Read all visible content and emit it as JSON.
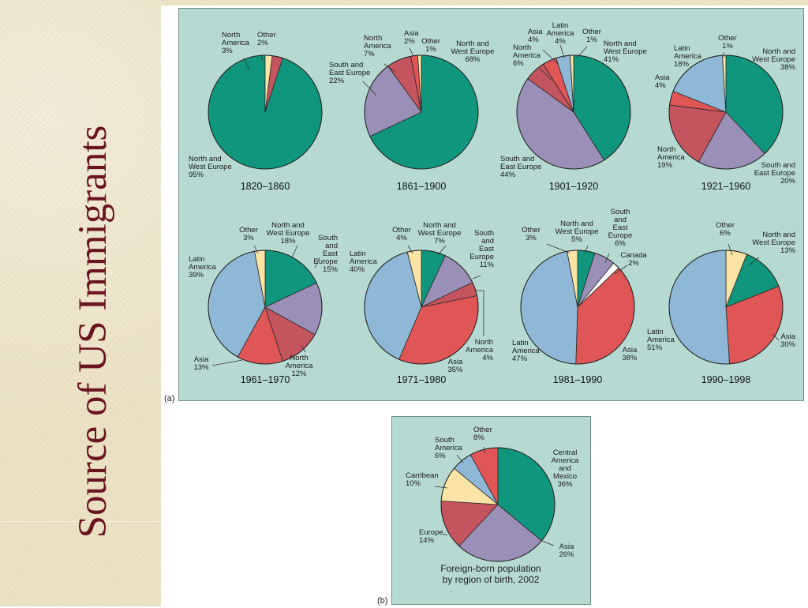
{
  "slide": {
    "title": "Source of US Immigrants"
  },
  "panels": {
    "a_label": "(a)",
    "b_label": "(b)"
  },
  "chart_data": [
    {
      "type": "pie",
      "title": "1820–1860",
      "slices": [
        {
          "name": "North and West Europe",
          "value": 95,
          "color": "#10967c"
        },
        {
          "name": "North America",
          "value": 3,
          "color": "#c4545e"
        },
        {
          "name": "Other",
          "value": 2,
          "color": "#fbe4a5"
        }
      ]
    },
    {
      "type": "pie",
      "title": "1861–1900",
      "slices": [
        {
          "name": "North and West Europe",
          "value": 68,
          "color": "#10967c"
        },
        {
          "name": "South and East Europe",
          "value": 22,
          "color": "#9a8fb6"
        },
        {
          "name": "North America",
          "value": 7,
          "color": "#c4545e"
        },
        {
          "name": "Asia",
          "value": 2,
          "color": "#e05555"
        },
        {
          "name": "Other",
          "value": 1,
          "color": "#fbe4a5"
        }
      ]
    },
    {
      "type": "pie",
      "title": "1901–1920",
      "slices": [
        {
          "name": "North and West Europe",
          "value": 41,
          "color": "#10967c"
        },
        {
          "name": "South and East Europe",
          "value": 44,
          "color": "#9a8fb6"
        },
        {
          "name": "North America",
          "value": 6,
          "color": "#c4545e"
        },
        {
          "name": "Asia",
          "value": 4,
          "color": "#e05555"
        },
        {
          "name": "Latin America",
          "value": 4,
          "color": "#8eb8d6"
        },
        {
          "name": "Other",
          "value": 1,
          "color": "#fbe4a5"
        }
      ]
    },
    {
      "type": "pie",
      "title": "1921–1960",
      "slices": [
        {
          "name": "North and West Europe",
          "value": 38,
          "color": "#10967c"
        },
        {
          "name": "South and East Europe",
          "value": 20,
          "color": "#9a8fb6"
        },
        {
          "name": "North America",
          "value": 19,
          "color": "#c4545e"
        },
        {
          "name": "Asia",
          "value": 4,
          "color": "#e05555"
        },
        {
          "name": "Latin America",
          "value": 18,
          "color": "#8eb8d6"
        },
        {
          "name": "Other",
          "value": 1,
          "color": "#fbe4a5"
        }
      ]
    },
    {
      "type": "pie",
      "title": "1961–1970",
      "slices": [
        {
          "name": "North and West Europe",
          "value": 18,
          "color": "#10967c"
        },
        {
          "name": "South and East Europe",
          "value": 15,
          "color": "#9a8fb6"
        },
        {
          "name": "North America",
          "value": 12,
          "color": "#c4545e"
        },
        {
          "name": "Asia",
          "value": 13,
          "color": "#e05555"
        },
        {
          "name": "Latin America",
          "value": 39,
          "color": "#8eb8d6"
        },
        {
          "name": "Other",
          "value": 3,
          "color": "#fbe4a5"
        }
      ]
    },
    {
      "type": "pie",
      "title": "1971–1980",
      "slices": [
        {
          "name": "North and West Europe",
          "value": 7,
          "color": "#10967c"
        },
        {
          "name": "South and East Europe",
          "value": 11,
          "color": "#9a8fb6"
        },
        {
          "name": "North America",
          "value": 4,
          "color": "#c4545e"
        },
        {
          "name": "Asia",
          "value": 35,
          "color": "#e05555"
        },
        {
          "name": "Latin America",
          "value": 40,
          "color": "#8eb8d6"
        },
        {
          "name": "Other",
          "value": 4,
          "color": "#fbe4a5"
        }
      ]
    },
    {
      "type": "pie",
      "title": "1981–1990",
      "slices": [
        {
          "name": "North and West Europe",
          "value": 5,
          "color": "#10967c"
        },
        {
          "name": "South and East Europe",
          "value": 6,
          "color": "#9a8fb6"
        },
        {
          "name": "Canada",
          "value": 2,
          "color": "#ffffff"
        },
        {
          "name": "Asia",
          "value": 38,
          "color": "#e05555"
        },
        {
          "name": "Latin America",
          "value": 47,
          "color": "#8eb8d6"
        },
        {
          "name": "Other",
          "value": 3,
          "color": "#fbe4a5"
        }
      ]
    },
    {
      "type": "pie",
      "title": "1990–1998",
      "slices": [
        {
          "name": "Other",
          "value": 6,
          "color": "#fbe4a5"
        },
        {
          "name": "North and West Europe",
          "value": 13,
          "color": "#10967c"
        },
        {
          "name": "Asia",
          "value": 30,
          "color": "#e05555"
        },
        {
          "name": "Latin America",
          "value": 51,
          "color": "#8eb8d6"
        }
      ]
    },
    {
      "type": "pie",
      "title": "Foreign-born population by region of birth, 2002",
      "slices": [
        {
          "name": "Central America and Mexico",
          "value": 36,
          "color": "#10967c"
        },
        {
          "name": "Asia",
          "value": 26,
          "color": "#9a8fb6"
        },
        {
          "name": "Europe",
          "value": 14,
          "color": "#c4545e"
        },
        {
          "name": "Carribean",
          "value": 10,
          "color": "#fbe4a5"
        },
        {
          "name": "South America",
          "value": 6,
          "color": "#8eb8d6"
        },
        {
          "name": "Other",
          "value": 8,
          "color": "#e05555"
        }
      ]
    }
  ]
}
